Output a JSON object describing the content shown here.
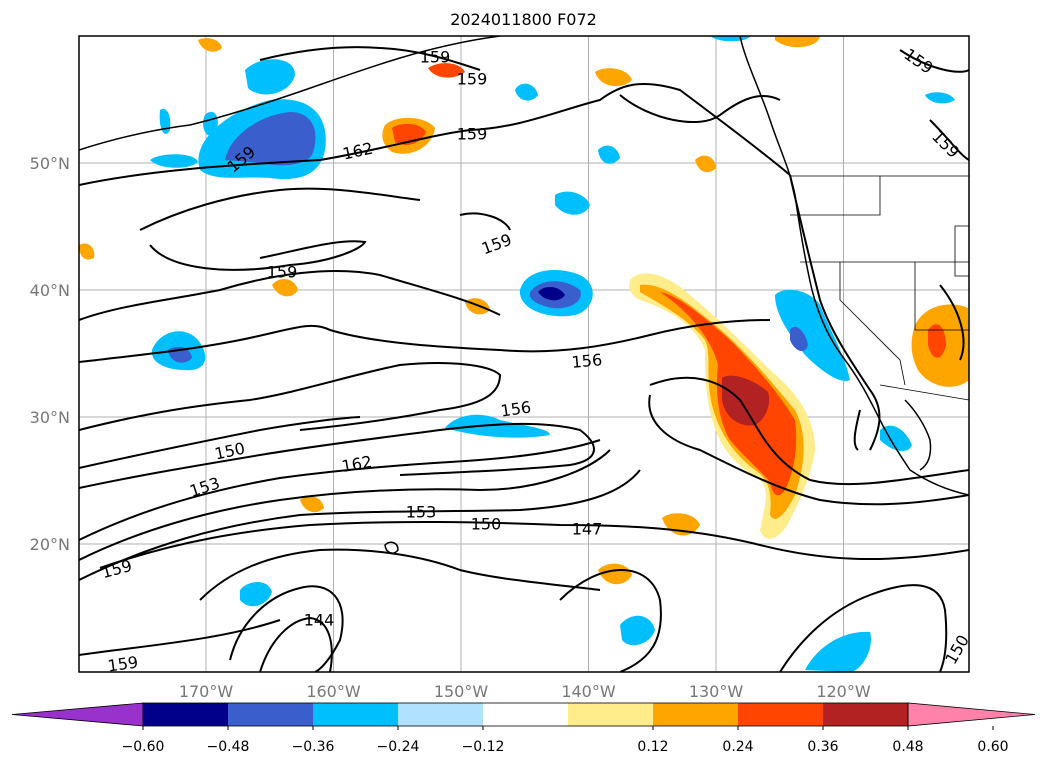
{
  "title": "2024011800 F072",
  "map": {
    "lat_ticks": [
      {
        "value": 50,
        "label": "50°N"
      },
      {
        "value": 40,
        "label": "40°N"
      },
      {
        "value": 30,
        "label": "30°N"
      },
      {
        "value": 20,
        "label": "20°N"
      }
    ],
    "lon_ticks": [
      {
        "value": -170,
        "label": "170°W"
      },
      {
        "value": -160,
        "label": "160°W"
      },
      {
        "value": -150,
        "label": "150°W"
      },
      {
        "value": -140,
        "label": "140°W"
      },
      {
        "value": -130,
        "label": "130°W"
      },
      {
        "value": -120,
        "label": "120°W"
      }
    ],
    "contour_labels": [
      "159",
      "159",
      "159",
      "159",
      "159",
      "159",
      "162",
      "159",
      "159",
      "156",
      "156",
      "150",
      "162",
      "153",
      "153",
      "150",
      "147",
      "159",
      "144",
      "159",
      "150"
    ]
  },
  "colorbar": {
    "ticks": [
      "−0.60",
      "−0.48",
      "−0.36",
      "−0.24",
      "−0.12",
      "0.12",
      "0.24",
      "0.36",
      "0.48",
      "0.60"
    ],
    "colors": [
      "#9932cc",
      "#00008b",
      "#3a5fcd",
      "#00bfff",
      "#b0e2ff",
      "#ffffff",
      "#ffec8b",
      "#ffa500",
      "#ff4500",
      "#b22222",
      "#ff82ab"
    ]
  }
}
